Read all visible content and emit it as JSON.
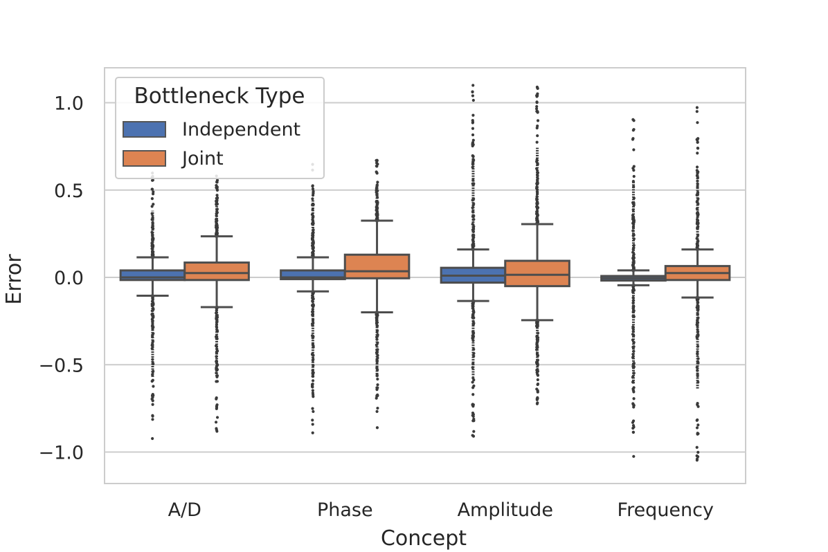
{
  "chart_data": {
    "type": "boxplot",
    "title": "",
    "xlabel": "Concept",
    "ylabel": "Error",
    "ylim": [
      -1.18,
      1.2
    ],
    "yticks": [
      1.0,
      0.5,
      0.0,
      -0.5,
      -1.0
    ],
    "ytick_labels": [
      "1.0",
      "0.5",
      "0.0",
      "−0.5",
      "−1.0"
    ],
    "grid": true,
    "categories": [
      "A/D",
      "Phase",
      "Amplitude",
      "Frequency"
    ],
    "legend": {
      "title": "Bottleneck Type",
      "placement": "upper-left",
      "entries": [
        "Independent",
        "Joint"
      ]
    },
    "series": [
      {
        "name": "Independent",
        "color": "#4c72b0",
        "boxes": [
          {
            "whislo": -0.105,
            "q1": -0.015,
            "med": 0.0,
            "q3": 0.04,
            "whishi": 0.115,
            "flier_min": -0.95,
            "flier_max": 0.6
          },
          {
            "whislo": -0.08,
            "q1": -0.01,
            "med": 0.0,
            "q3": 0.04,
            "whishi": 0.115,
            "flier_min": -0.9,
            "flier_max": 0.71
          },
          {
            "whislo": -0.135,
            "q1": -0.03,
            "med": 0.01,
            "q3": 0.055,
            "whishi": 0.16,
            "flier_min": -0.92,
            "flier_max": 1.12
          },
          {
            "whislo": -0.045,
            "q1": -0.018,
            "med": -0.005,
            "q3": 0.008,
            "whishi": 0.04,
            "flier_min": -1.07,
            "flier_max": 0.97
          }
        ]
      },
      {
        "name": "Joint",
        "color": "#dd8452",
        "boxes": [
          {
            "whislo": -0.17,
            "q1": -0.015,
            "med": 0.025,
            "q3": 0.085,
            "whishi": 0.235,
            "flier_min": -0.89,
            "flier_max": 0.6
          },
          {
            "whislo": -0.2,
            "q1": -0.005,
            "med": 0.035,
            "q3": 0.13,
            "whishi": 0.325,
            "flier_min": -0.88,
            "flier_max": 0.7
          },
          {
            "whislo": -0.245,
            "q1": -0.05,
            "med": 0.015,
            "q3": 0.095,
            "whishi": 0.305,
            "flier_min": -0.76,
            "flier_max": 1.1
          },
          {
            "whislo": -0.115,
            "q1": -0.015,
            "med": 0.025,
            "q3": 0.065,
            "whishi": 0.16,
            "flier_min": -1.07,
            "flier_max": 0.98
          }
        ]
      }
    ]
  }
}
